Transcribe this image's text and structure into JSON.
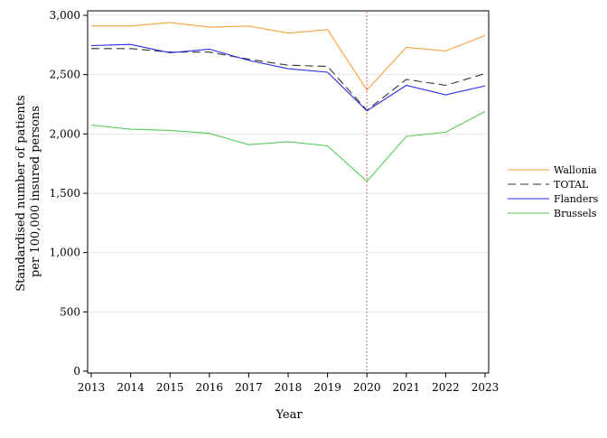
{
  "chart_data": {
    "type": "line",
    "title": "",
    "xlabel": "Year",
    "ylabel_lines": [
      "Standardised number of patients",
      "per 100,000 insured persons"
    ],
    "x": [
      2013,
      2014,
      2015,
      2016,
      2017,
      2018,
      2019,
      2020,
      2021,
      2022,
      2023
    ],
    "xlim": [
      2013,
      2023
    ],
    "ylim": [
      0,
      3000
    ],
    "yticks": [
      0,
      500,
      1000,
      1500,
      2000,
      2500,
      3000
    ],
    "ytick_labels": [
      "0",
      "500",
      "1,000",
      "1,500",
      "2,000",
      "2,500",
      "3,000"
    ],
    "grid": "horizontal",
    "legend_position": "right",
    "reference_line": {
      "x": 2020,
      "color": "#e06060",
      "style": "dotted"
    },
    "series": [
      {
        "name": "Wallonia",
        "color": "#f5a040",
        "dash": "",
        "values": [
          2910,
          2910,
          2940,
          2900,
          2910,
          2850,
          2880,
          2370,
          2730,
          2700,
          2830
        ]
      },
      {
        "name": "TOTAL",
        "color": "#333333",
        "dash": "9,5",
        "values": [
          2720,
          2720,
          2690,
          2690,
          2630,
          2580,
          2570,
          2200,
          2460,
          2410,
          2510
        ]
      },
      {
        "name": "Flanders",
        "color": "#2a2ae0",
        "dash": "",
        "values": [
          2745,
          2755,
          2685,
          2715,
          2620,
          2550,
          2520,
          2195,
          2410,
          2330,
          2405
        ]
      },
      {
        "name": "Brussels",
        "color": "#55cc55",
        "dash": "",
        "values": [
          2075,
          2040,
          2030,
          2005,
          1910,
          1935,
          1900,
          1600,
          1980,
          2015,
          2190
        ]
      }
    ]
  }
}
